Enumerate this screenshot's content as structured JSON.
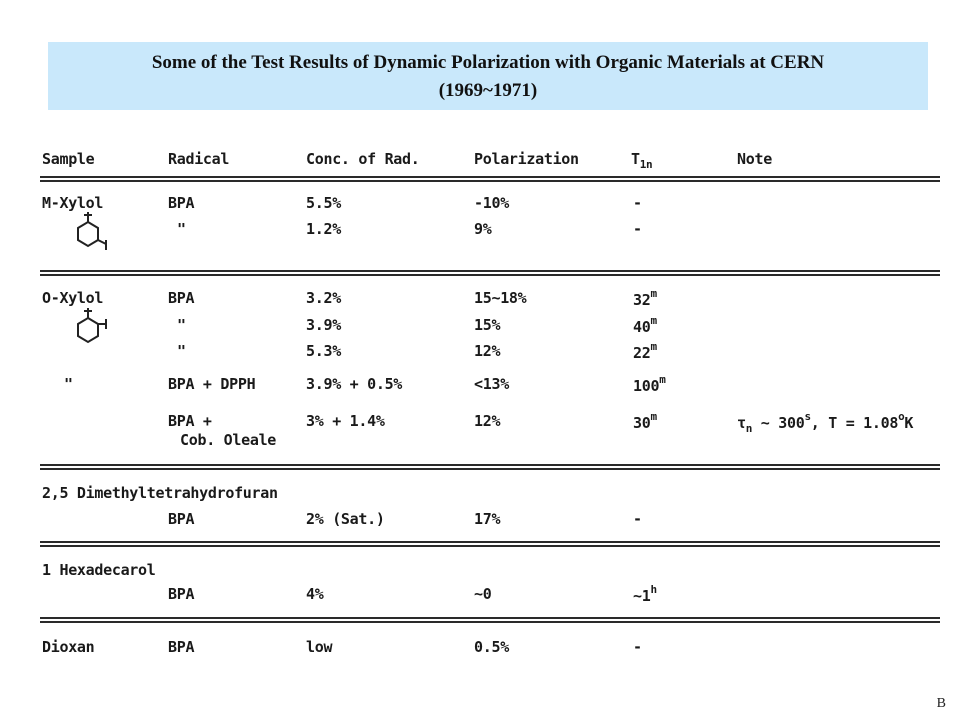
{
  "title": {
    "line1": "Some of the Test Results of Dynamic Polarization with Organic Materials at CERN",
    "line2": "(1969~1971)"
  },
  "headers": {
    "sample": "Sample",
    "radical": "Radical",
    "conc": "Conc. of Rad.",
    "polarization": "Polarization",
    "t1n_main": "T",
    "t1n_sub": "1n",
    "note": "Note"
  },
  "mxylol": {
    "name": "M-Xylol",
    "rows": [
      {
        "radical": "BPA",
        "conc": "5.5%",
        "pol": "-10%",
        "t1n": "-"
      },
      {
        "radical": "\"",
        "conc": "1.2%",
        "pol": "9%",
        "t1n": "-"
      }
    ]
  },
  "oxylol": {
    "name": "O-Xylol",
    "rows": [
      {
        "radical": "BPA",
        "conc": "3.2%",
        "pol": "15~18%",
        "t1n": "32",
        "t1n_sup": "m"
      },
      {
        "radical": "\"",
        "conc": "3.9%",
        "pol": "15%",
        "t1n": "40",
        "t1n_sup": "m"
      },
      {
        "radical": "\"",
        "conc": "5.3%",
        "pol": "12%",
        "t1n": "22",
        "t1n_sup": "m"
      },
      {
        "sample": "\"",
        "radical": "BPA + DPPH",
        "conc": "3.9% + 0.5%",
        "pol": "<13%",
        "t1n": "100",
        "t1n_sup": "m"
      },
      {
        "radical": "BPA +",
        "radical2": "Cob. Oleale",
        "conc": "3% + 1.4%",
        "pol": "12%",
        "t1n": "30",
        "t1n_sup": "m",
        "note_tau": "τ",
        "note_tau_sub": "n",
        "note_rest": " ~ 300",
        "note_sup": "s",
        "note_t": ", T = 1.08",
        "note_deg": "o",
        "note_k": "K"
      }
    ]
  },
  "dimethyl": {
    "name": "2,5 Dimethyltetrahydrofuran",
    "radical": "BPA",
    "conc": "2% (Sat.)",
    "pol": "17%",
    "t1n": "-"
  },
  "hexadecarol": {
    "name": "1 Hexadecarol",
    "radical": "BPA",
    "conc": "4%",
    "pol": "~0",
    "t1n": "~1",
    "t1n_sup": "h"
  },
  "dioxan": {
    "name": "Dioxan",
    "radical": "BPA",
    "conc": "low",
    "pol": "0.5%",
    "t1n": "-"
  },
  "footer": {
    "mark": "B"
  }
}
